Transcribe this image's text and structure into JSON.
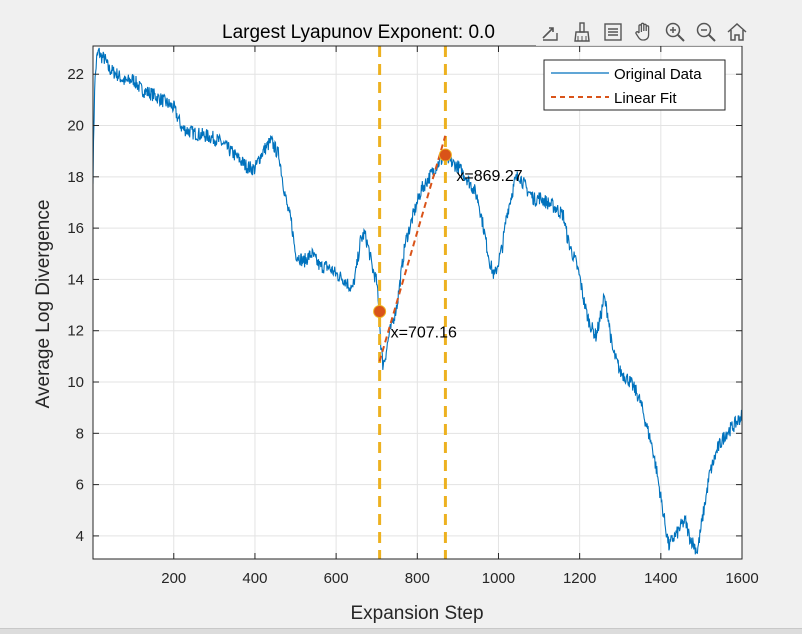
{
  "window": {
    "background": "#f0f0f0"
  },
  "toolbar": {
    "icons": [
      "export-icon",
      "brush-icon",
      "legend-toggle-icon",
      "pan-hand-icon",
      "zoom-in-icon",
      "zoom-out-icon",
      "home-icon"
    ]
  },
  "chart_data": {
    "type": "line",
    "title": "Largest Lyapunov Exponent: 0.0",
    "xlabel": "Expansion Step",
    "ylabel": "Average Log Divergence",
    "xlim": [
      1,
      1600
    ],
    "ylim": [
      3.1,
      23.1
    ],
    "xticks": [
      200,
      400,
      600,
      800,
      1000,
      1200,
      1400,
      1600
    ],
    "yticks": [
      4,
      6,
      8,
      10,
      12,
      14,
      16,
      18,
      20,
      22
    ],
    "grid": true,
    "legend": {
      "position": "top-right",
      "entries": [
        "Original Data",
        "Linear Fit"
      ]
    },
    "colors": {
      "data": "#0072bd",
      "fit": "#d95319",
      "vline": "#edb120",
      "marker": "#d95319"
    },
    "series": [
      {
        "name": "Original Data",
        "style": "solid",
        "x": [
          1,
          5,
          10,
          15,
          20,
          30,
          40,
          60,
          80,
          100,
          120,
          150,
          180,
          200,
          210,
          220,
          250,
          280,
          300,
          320,
          340,
          360,
          380,
          400,
          410,
          420,
          440,
          460,
          470,
          480,
          490,
          500,
          520,
          540,
          560,
          580,
          600,
          620,
          640,
          650,
          660,
          670,
          680,
          690,
          700,
          707,
          710,
          715,
          720,
          730,
          750,
          770,
          790,
          810,
          830,
          850,
          869,
          880,
          900,
          920,
          940,
          950,
          960,
          970,
          980,
          990,
          1000,
          1010,
          1020,
          1040,
          1050,
          1060,
          1070,
          1080,
          1090,
          1100,
          1120,
          1140,
          1160,
          1170,
          1180,
          1190,
          1200,
          1210,
          1220,
          1230,
          1240,
          1250,
          1260,
          1270,
          1280,
          1300,
          1320,
          1340,
          1350,
          1360,
          1370,
          1380,
          1390,
          1400,
          1410,
          1420,
          1430,
          1440,
          1450,
          1460,
          1470,
          1480,
          1490,
          1500,
          1510,
          1520,
          1540,
          1560,
          1580,
          1600
        ],
        "y": [
          18.0,
          21.5,
          22.6,
          22.9,
          22.7,
          22.6,
          22.2,
          22.0,
          21.7,
          21.8,
          21.4,
          21.2,
          20.9,
          20.7,
          20.3,
          19.9,
          19.7,
          19.6,
          19.5,
          19.3,
          19.0,
          18.7,
          18.4,
          18.3,
          18.7,
          19.0,
          19.4,
          18.8,
          17.7,
          16.8,
          16.2,
          15.0,
          14.7,
          15.0,
          14.5,
          14.5,
          14.2,
          14.0,
          13.6,
          14.4,
          15.5,
          15.8,
          15.2,
          14.4,
          13.9,
          12.4,
          11.5,
          10.7,
          10.9,
          11.8,
          13.0,
          15.4,
          16.5,
          17.5,
          18.0,
          18.5,
          18.8,
          18.6,
          18.4,
          18.0,
          17.5,
          17.1,
          16.3,
          15.4,
          14.6,
          14.1,
          14.7,
          15.3,
          16.5,
          17.8,
          18.1,
          17.8,
          17.5,
          17.3,
          17.1,
          17.2,
          17.0,
          16.8,
          16.5,
          15.6,
          15.1,
          14.7,
          14.1,
          13.2,
          12.5,
          12.1,
          11.8,
          12.4,
          13.3,
          12.6,
          11.3,
          10.4,
          10.1,
          9.6,
          9.2,
          8.6,
          8.0,
          7.4,
          6.5,
          5.5,
          4.5,
          3.6,
          3.9,
          4.1,
          4.4,
          4.6,
          4.0,
          3.7,
          3.4,
          4.4,
          5.4,
          6.4,
          7.4,
          8.0,
          8.3,
          8.7
        ]
      },
      {
        "name": "Linear Fit",
        "style": "dashed",
        "x": [
          707,
          869
        ],
        "y": [
          10.8,
          19.6
        ]
      }
    ],
    "vlines": [
      707.16,
      869.27
    ],
    "markers": [
      {
        "x": 707.16,
        "y": 12.75,
        "label": "x=707.16"
      },
      {
        "x": 869.27,
        "y": 18.85,
        "label": "x=869.27"
      }
    ]
  }
}
